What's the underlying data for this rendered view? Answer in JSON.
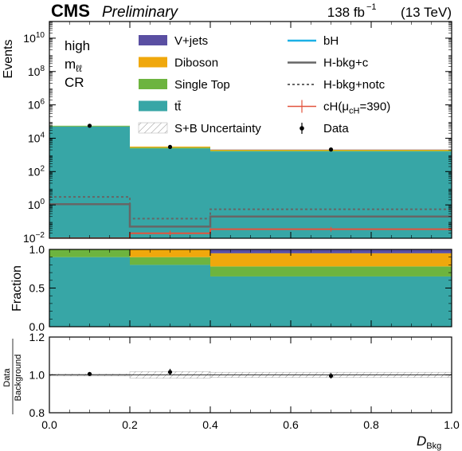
{
  "header": {
    "experiment": "CMS",
    "status": "Preliminary",
    "lumi": "138 fb",
    "lumi_exp": "−1",
    "energy": "(13 TeV)"
  },
  "region": {
    "line1": "high",
    "line2_main": "m",
    "line2_sub": "ℓℓ",
    "line3": "CR"
  },
  "legend": [
    {
      "key": "vjets",
      "label": "V+jets",
      "kind": "fill",
      "color": "#5a4fa2"
    },
    {
      "key": "diboson",
      "label": "Diboson",
      "kind": "fill",
      "color": "#f0a80c"
    },
    {
      "key": "singletop",
      "label": "Single Top",
      "kind": "fill",
      "color": "#6db43f"
    },
    {
      "key": "ttbar",
      "label": "tt̄",
      "kind": "fill",
      "color": "#37a6a6"
    },
    {
      "key": "unc",
      "label": "S+B Uncertainty",
      "kind": "hatch",
      "color": "#777777"
    },
    {
      "key": "bH",
      "label": "bH",
      "kind": "line",
      "color": "#1cb0e6"
    },
    {
      "key": "hbkgc",
      "label": "H-bkg+c",
      "kind": "line",
      "color": "#666666"
    },
    {
      "key": "hbkgnotc",
      "label": "H-bkg+notc",
      "kind": "dotted",
      "color": "#666666"
    },
    {
      "key": "cH",
      "label": "cH(μ",
      "label_sub": "cH",
      "label_tail": "=390)",
      "kind": "errline",
      "color": "#e2533d"
    },
    {
      "key": "data",
      "label": "Data",
      "kind": "point",
      "color": "#000000"
    }
  ],
  "chart_data": [
    {
      "panel": "events",
      "type": "bar",
      "stacked": true,
      "ylabel": "Events",
      "yscale": "log",
      "ylim": [
        0.01,
        100000000000.0
      ],
      "xlim": [
        0,
        1
      ],
      "bin_edges": [
        0,
        0.2,
        0.4,
        1.0
      ],
      "yticks": [
        {
          "v": 0.01,
          "base": "10",
          "exp": "−2"
        },
        {
          "v": 1,
          "base": "10",
          "exp": "0"
        },
        {
          "v": 100,
          "base": "10",
          "exp": "2"
        },
        {
          "v": 10000,
          "base": "10",
          "exp": "4"
        },
        {
          "v": 1000000,
          "base": "10",
          "exp": "6"
        },
        {
          "v": 100000000,
          "base": "10",
          "exp": "8"
        },
        {
          "v": 10000000000,
          "base": "10",
          "exp": "10"
        }
      ],
      "series": [
        {
          "name": "tt̄",
          "values": [
            50000,
            2400,
            1600
          ]
        },
        {
          "name": "Single Top",
          "values": [
            6000,
            350,
            180
          ]
        },
        {
          "name": "Diboson",
          "values": [
            0,
            400,
            240
          ]
        },
        {
          "name": "V+jets",
          "values": [
            0,
            0,
            70
          ]
        }
      ],
      "lines": [
        {
          "name": "H-bkg+c",
          "values": [
            1.1,
            0.05,
            0.2
          ]
        },
        {
          "name": "H-bkg+notc",
          "values": [
            3.0,
            0.15,
            0.55
          ]
        },
        {
          "name": "cH(μcH=390)",
          "values": [
            0.008,
            0.02,
            0.035
          ],
          "err_lo": [
            0.0055,
            0.014,
            0.025
          ],
          "err_hi": [
            0.011,
            0.028,
            0.048
          ]
        }
      ],
      "data_points": {
        "x": [
          0.1,
          0.3,
          0.7
        ],
        "y": [
          56000,
          3000,
          2100
        ]
      }
    },
    {
      "panel": "fraction",
      "type": "bar",
      "stacked": true,
      "ylabel": "Fraction",
      "ylim": [
        0,
        1
      ],
      "xlim": [
        0,
        1
      ],
      "bin_edges": [
        0,
        0.2,
        0.4,
        1.0
      ],
      "yticks": [
        "0.0",
        "0.5",
        "1.0"
      ],
      "series": [
        {
          "name": "tt̄",
          "values": [
            0.9,
            0.8,
            0.65
          ]
        },
        {
          "name": "Single Top",
          "values": [
            0.1,
            0.1,
            0.13
          ]
        },
        {
          "name": "Diboson",
          "values": [
            0.0,
            0.1,
            0.17
          ]
        },
        {
          "name": "V+jets",
          "values": [
            0.0,
            0.0,
            0.05
          ]
        }
      ]
    },
    {
      "panel": "ratio",
      "type": "scatter",
      "ylabel_num": "Data",
      "ylabel_den": "Background",
      "xlabel_main": "D",
      "xlabel_sub": "Bkg",
      "ylim": [
        0.8,
        1.2
      ],
      "xlim": [
        0,
        1
      ],
      "yticks": [
        "0.8",
        "1.0",
        "1.2"
      ],
      "xticks": [
        "0.0",
        "0.2",
        "0.4",
        "0.6",
        "0.8",
        "1.0"
      ],
      "band_edges": [
        0,
        0.2,
        0.4,
        1.0
      ],
      "band_half_width": [
        0.006,
        0.018,
        0.014
      ],
      "x": [
        0.1,
        0.3,
        0.7
      ],
      "y": [
        1.005,
        1.015,
        0.995
      ],
      "yerr": [
        0.006,
        0.017,
        0.014
      ]
    }
  ]
}
